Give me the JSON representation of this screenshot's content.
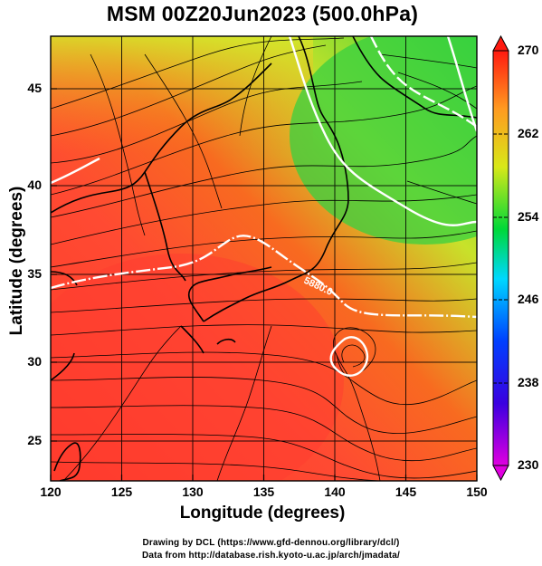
{
  "title": "MSM 00Z20Jun2023 (500.0hPa)",
  "x_axis": {
    "label": "Longitude (degrees)",
    "ticks": [
      "120",
      "125",
      "130",
      "135",
      "140",
      "145",
      "150"
    ]
  },
  "y_axis": {
    "label": "Latitude  (degrees)",
    "ticks": [
      "25",
      "30",
      "35",
      "40",
      "45"
    ]
  },
  "colorbar": {
    "ticks": [
      "230",
      "238",
      "246",
      "254",
      "262",
      "270"
    ],
    "colors": [
      "#e000e0",
      "#0000c8",
      "#00c8ff",
      "#00cc44",
      "#e6e600",
      "#ff8000",
      "#ff0000"
    ]
  },
  "contour_label": "5880.0",
  "credits": {
    "line1": "Drawing by DCL (https://www.gfd-dennou.org/library/dcl/)",
    "line2": "Data from http://database.rish.kyoto-u.ac.jp/arch/jmadata/"
  },
  "map": {
    "lon_range": [
      120,
      150
    ],
    "lat_range": [
      22.7,
      47.8
    ],
    "gridlines": true
  }
}
